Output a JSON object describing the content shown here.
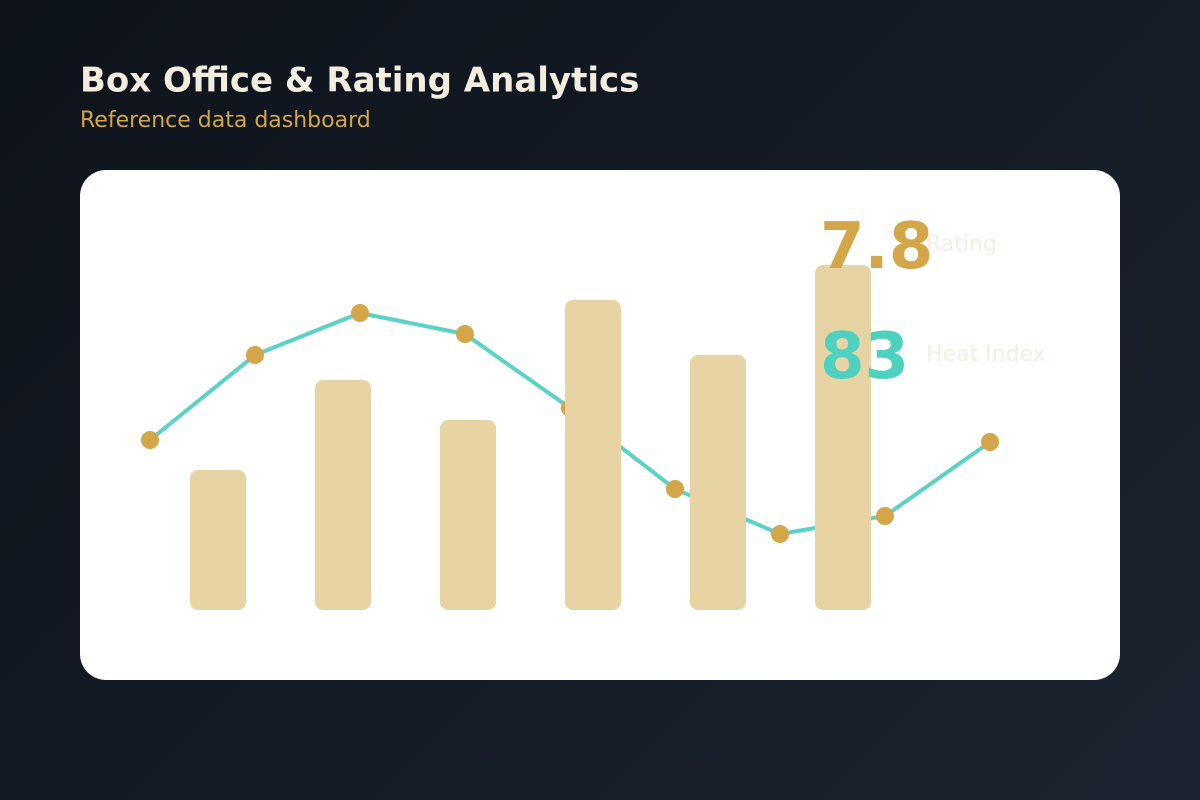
{
  "chart_data": {
    "type": "bar",
    "title": "Box Office & Rating Analytics",
    "subtitle": "Reference data dashboard",
    "ylim": [
      0,
      400
    ],
    "series": [
      {
        "type": "bar",
        "color": "#e8d3a4",
        "values": [
          140,
          230,
          190,
          310,
          255,
          345
        ]
      },
      {
        "type": "line",
        "color": "#5ad2c4",
        "marker_color": "#d4a64a",
        "values": [
          170,
          255,
          297,
          276,
          202,
          121,
          76,
          94,
          168
        ]
      }
    ],
    "kpis": [
      {
        "value": 7.8,
        "label": "Rating",
        "color": "#d4a64a"
      },
      {
        "value": 83,
        "label": "Heat Index",
        "color": "#4fd1c0"
      }
    ]
  }
}
